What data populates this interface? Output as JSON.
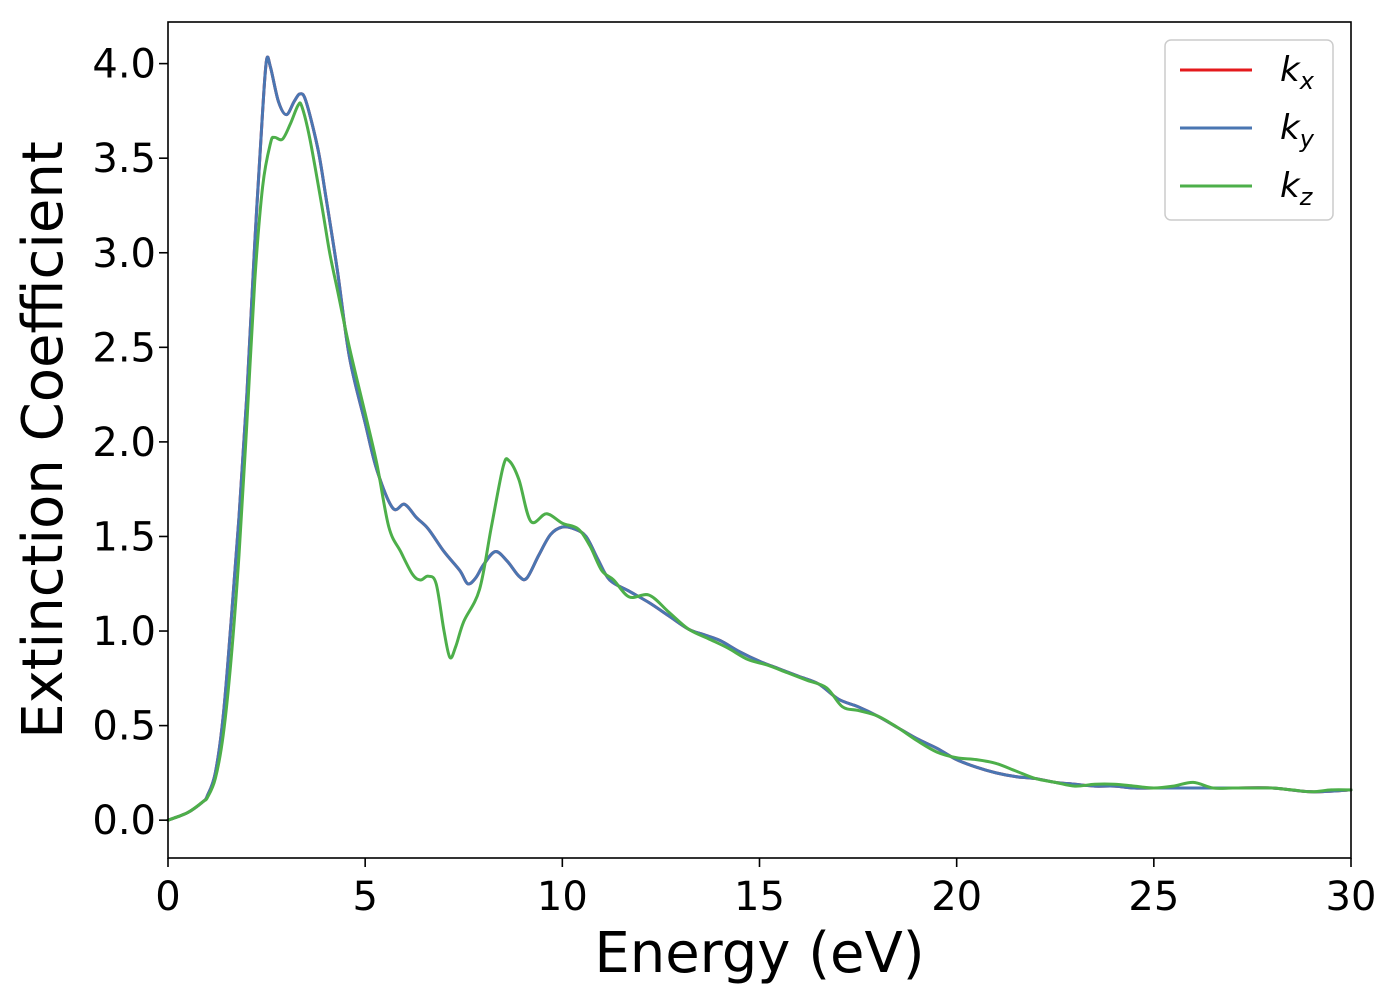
{
  "chart_data": {
    "type": "line",
    "title": "",
    "xlabel": "Energy (eV)",
    "ylabel": "Extinction Coefficient",
    "xlim": [
      0,
      30
    ],
    "ylim": [
      -0.2,
      4.22
    ],
    "xticks": [
      0,
      5,
      10,
      15,
      20,
      25,
      30
    ],
    "xtick_labels": [
      "0",
      "5",
      "10",
      "15",
      "20",
      "25",
      "30"
    ],
    "yticks": [
      0.0,
      0.5,
      1.0,
      1.5,
      2.0,
      2.5,
      3.0,
      3.5,
      4.0
    ],
    "ytick_labels": [
      "0.0",
      "0.5",
      "1.0",
      "1.5",
      "2.0",
      "2.5",
      "3.0",
      "3.5",
      "4.0"
    ],
    "grid": false,
    "legend_position": "top-right",
    "series": [
      {
        "name": "k_x",
        "label_main": "k",
        "label_sub": "x",
        "color": "#e41a1c",
        "points": [
          [
            0,
            0.0
          ],
          [
            0.5,
            0.04
          ],
          [
            0.9,
            0.1
          ],
          [
            1.0,
            0.13
          ],
          [
            1.2,
            0.25
          ],
          [
            1.4,
            0.55
          ],
          [
            1.6,
            1.05
          ],
          [
            1.8,
            1.6
          ],
          [
            2.0,
            2.25
          ],
          [
            2.2,
            3.05
          ],
          [
            2.4,
            3.75
          ],
          [
            2.5,
            4.02
          ],
          [
            2.6,
            3.98
          ],
          [
            2.8,
            3.8
          ],
          [
            3.0,
            3.73
          ],
          [
            3.2,
            3.8
          ],
          [
            3.35,
            3.84
          ],
          [
            3.5,
            3.8
          ],
          [
            3.8,
            3.55
          ],
          [
            4.0,
            3.3
          ],
          [
            4.3,
            2.9
          ],
          [
            4.6,
            2.45
          ],
          [
            5.0,
            2.1
          ],
          [
            5.3,
            1.85
          ],
          [
            5.7,
            1.65
          ],
          [
            6.0,
            1.67
          ],
          [
            6.3,
            1.6
          ],
          [
            6.6,
            1.54
          ],
          [
            7.0,
            1.42
          ],
          [
            7.4,
            1.32
          ],
          [
            7.6,
            1.25
          ],
          [
            7.8,
            1.28
          ],
          [
            8.0,
            1.35
          ],
          [
            8.3,
            1.42
          ],
          [
            8.6,
            1.37
          ],
          [
            8.9,
            1.29
          ],
          [
            9.1,
            1.28
          ],
          [
            9.4,
            1.4
          ],
          [
            9.7,
            1.51
          ],
          [
            10.0,
            1.55
          ],
          [
            10.3,
            1.54
          ],
          [
            10.6,
            1.5
          ],
          [
            10.9,
            1.38
          ],
          [
            11.2,
            1.27
          ],
          [
            11.7,
            1.21
          ],
          [
            12.2,
            1.15
          ],
          [
            12.7,
            1.08
          ],
          [
            13.2,
            1.01
          ],
          [
            13.6,
            0.98
          ],
          [
            14.0,
            0.95
          ],
          [
            14.5,
            0.89
          ],
          [
            15.0,
            0.84
          ],
          [
            15.5,
            0.8
          ],
          [
            16.0,
            0.76
          ],
          [
            16.5,
            0.72
          ],
          [
            17.0,
            0.64
          ],
          [
            17.5,
            0.6
          ],
          [
            18.0,
            0.55
          ],
          [
            18.5,
            0.49
          ],
          [
            19.0,
            0.43
          ],
          [
            19.5,
            0.38
          ],
          [
            20.0,
            0.32
          ],
          [
            20.5,
            0.28
          ],
          [
            21.0,
            0.25
          ],
          [
            21.5,
            0.23
          ],
          [
            22.0,
            0.22
          ],
          [
            22.5,
            0.2
          ],
          [
            23.0,
            0.19
          ],
          [
            23.5,
            0.18
          ],
          [
            24.0,
            0.18
          ],
          [
            24.5,
            0.17
          ],
          [
            25.0,
            0.17
          ],
          [
            26.0,
            0.17
          ],
          [
            27.0,
            0.17
          ],
          [
            28.0,
            0.17
          ],
          [
            29.0,
            0.15
          ],
          [
            30.0,
            0.16
          ]
        ]
      },
      {
        "name": "k_y",
        "label_main": "k",
        "label_sub": "y",
        "color": "#4a76b2",
        "points": [
          [
            0,
            0.0
          ],
          [
            0.5,
            0.04
          ],
          [
            0.9,
            0.1
          ],
          [
            1.0,
            0.13
          ],
          [
            1.2,
            0.25
          ],
          [
            1.4,
            0.55
          ],
          [
            1.6,
            1.05
          ],
          [
            1.8,
            1.6
          ],
          [
            2.0,
            2.25
          ],
          [
            2.2,
            3.05
          ],
          [
            2.4,
            3.75
          ],
          [
            2.5,
            4.02
          ],
          [
            2.6,
            3.98
          ],
          [
            2.8,
            3.8
          ],
          [
            3.0,
            3.73
          ],
          [
            3.2,
            3.8
          ],
          [
            3.35,
            3.84
          ],
          [
            3.5,
            3.8
          ],
          [
            3.8,
            3.55
          ],
          [
            4.0,
            3.3
          ],
          [
            4.3,
            2.9
          ],
          [
            4.6,
            2.45
          ],
          [
            5.0,
            2.1
          ],
          [
            5.3,
            1.85
          ],
          [
            5.7,
            1.65
          ],
          [
            6.0,
            1.67
          ],
          [
            6.3,
            1.6
          ],
          [
            6.6,
            1.54
          ],
          [
            7.0,
            1.42
          ],
          [
            7.4,
            1.32
          ],
          [
            7.6,
            1.25
          ],
          [
            7.8,
            1.28
          ],
          [
            8.0,
            1.35
          ],
          [
            8.3,
            1.42
          ],
          [
            8.6,
            1.37
          ],
          [
            8.9,
            1.29
          ],
          [
            9.1,
            1.28
          ],
          [
            9.4,
            1.4
          ],
          [
            9.7,
            1.51
          ],
          [
            10.0,
            1.55
          ],
          [
            10.3,
            1.54
          ],
          [
            10.6,
            1.5
          ],
          [
            10.9,
            1.38
          ],
          [
            11.2,
            1.27
          ],
          [
            11.7,
            1.21
          ],
          [
            12.2,
            1.15
          ],
          [
            12.7,
            1.08
          ],
          [
            13.2,
            1.01
          ],
          [
            13.6,
            0.98
          ],
          [
            14.0,
            0.95
          ],
          [
            14.5,
            0.89
          ],
          [
            15.0,
            0.84
          ],
          [
            15.5,
            0.8
          ],
          [
            16.0,
            0.76
          ],
          [
            16.5,
            0.72
          ],
          [
            17.0,
            0.64
          ],
          [
            17.5,
            0.6
          ],
          [
            18.0,
            0.55
          ],
          [
            18.5,
            0.49
          ],
          [
            19.0,
            0.43
          ],
          [
            19.5,
            0.38
          ],
          [
            20.0,
            0.32
          ],
          [
            20.5,
            0.28
          ],
          [
            21.0,
            0.25
          ],
          [
            21.5,
            0.23
          ],
          [
            22.0,
            0.22
          ],
          [
            22.5,
            0.2
          ],
          [
            23.0,
            0.19
          ],
          [
            23.5,
            0.18
          ],
          [
            24.0,
            0.18
          ],
          [
            24.5,
            0.17
          ],
          [
            25.0,
            0.17
          ],
          [
            26.0,
            0.17
          ],
          [
            27.0,
            0.17
          ],
          [
            28.0,
            0.17
          ],
          [
            29.0,
            0.15
          ],
          [
            30.0,
            0.16
          ]
        ]
      },
      {
        "name": "k_z",
        "label_main": "k",
        "label_sub": "z",
        "color": "#4daf4a",
        "points": [
          [
            0,
            0.0
          ],
          [
            0.5,
            0.04
          ],
          [
            0.9,
            0.1
          ],
          [
            1.0,
            0.12
          ],
          [
            1.2,
            0.22
          ],
          [
            1.4,
            0.45
          ],
          [
            1.6,
            0.85
          ],
          [
            1.8,
            1.4
          ],
          [
            2.0,
            2.1
          ],
          [
            2.2,
            2.85
          ],
          [
            2.4,
            3.35
          ],
          [
            2.6,
            3.58
          ],
          [
            2.7,
            3.61
          ],
          [
            2.9,
            3.6
          ],
          [
            3.1,
            3.68
          ],
          [
            3.3,
            3.78
          ],
          [
            3.4,
            3.77
          ],
          [
            3.6,
            3.6
          ],
          [
            3.9,
            3.25
          ],
          [
            4.1,
            3.0
          ],
          [
            4.3,
            2.8
          ],
          [
            4.6,
            2.5
          ],
          [
            5.0,
            2.15
          ],
          [
            5.3,
            1.88
          ],
          [
            5.6,
            1.55
          ],
          [
            5.9,
            1.42
          ],
          [
            6.2,
            1.3
          ],
          [
            6.4,
            1.27
          ],
          [
            6.6,
            1.29
          ],
          [
            6.8,
            1.25
          ],
          [
            7.0,
            1.0
          ],
          [
            7.15,
            0.86
          ],
          [
            7.3,
            0.92
          ],
          [
            7.5,
            1.05
          ],
          [
            7.9,
            1.22
          ],
          [
            8.2,
            1.55
          ],
          [
            8.5,
            1.87
          ],
          [
            8.65,
            1.9
          ],
          [
            8.9,
            1.8
          ],
          [
            9.2,
            1.58
          ],
          [
            9.6,
            1.62
          ],
          [
            10.0,
            1.57
          ],
          [
            10.4,
            1.54
          ],
          [
            10.7,
            1.45
          ],
          [
            11.0,
            1.32
          ],
          [
            11.3,
            1.27
          ],
          [
            11.7,
            1.18
          ],
          [
            12.2,
            1.19
          ],
          [
            12.7,
            1.1
          ],
          [
            13.2,
            1.01
          ],
          [
            13.7,
            0.96
          ],
          [
            14.2,
            0.91
          ],
          [
            14.7,
            0.85
          ],
          [
            15.2,
            0.82
          ],
          [
            15.7,
            0.78
          ],
          [
            16.2,
            0.74
          ],
          [
            16.7,
            0.7
          ],
          [
            17.1,
            0.6
          ],
          [
            17.5,
            0.58
          ],
          [
            18.0,
            0.55
          ],
          [
            18.5,
            0.49
          ],
          [
            19.0,
            0.42
          ],
          [
            19.5,
            0.36
          ],
          [
            20.0,
            0.33
          ],
          [
            20.5,
            0.32
          ],
          [
            21.0,
            0.3
          ],
          [
            21.5,
            0.26
          ],
          [
            22.0,
            0.22
          ],
          [
            22.5,
            0.2
          ],
          [
            23.0,
            0.18
          ],
          [
            23.5,
            0.19
          ],
          [
            24.0,
            0.19
          ],
          [
            24.5,
            0.18
          ],
          [
            25.0,
            0.17
          ],
          [
            25.5,
            0.18
          ],
          [
            26.0,
            0.2
          ],
          [
            26.5,
            0.17
          ],
          [
            27.0,
            0.17
          ],
          [
            27.5,
            0.17
          ],
          [
            28.0,
            0.17
          ],
          [
            28.5,
            0.16
          ],
          [
            29.0,
            0.15
          ],
          [
            29.5,
            0.16
          ],
          [
            30.0,
            0.16
          ]
        ]
      }
    ]
  }
}
